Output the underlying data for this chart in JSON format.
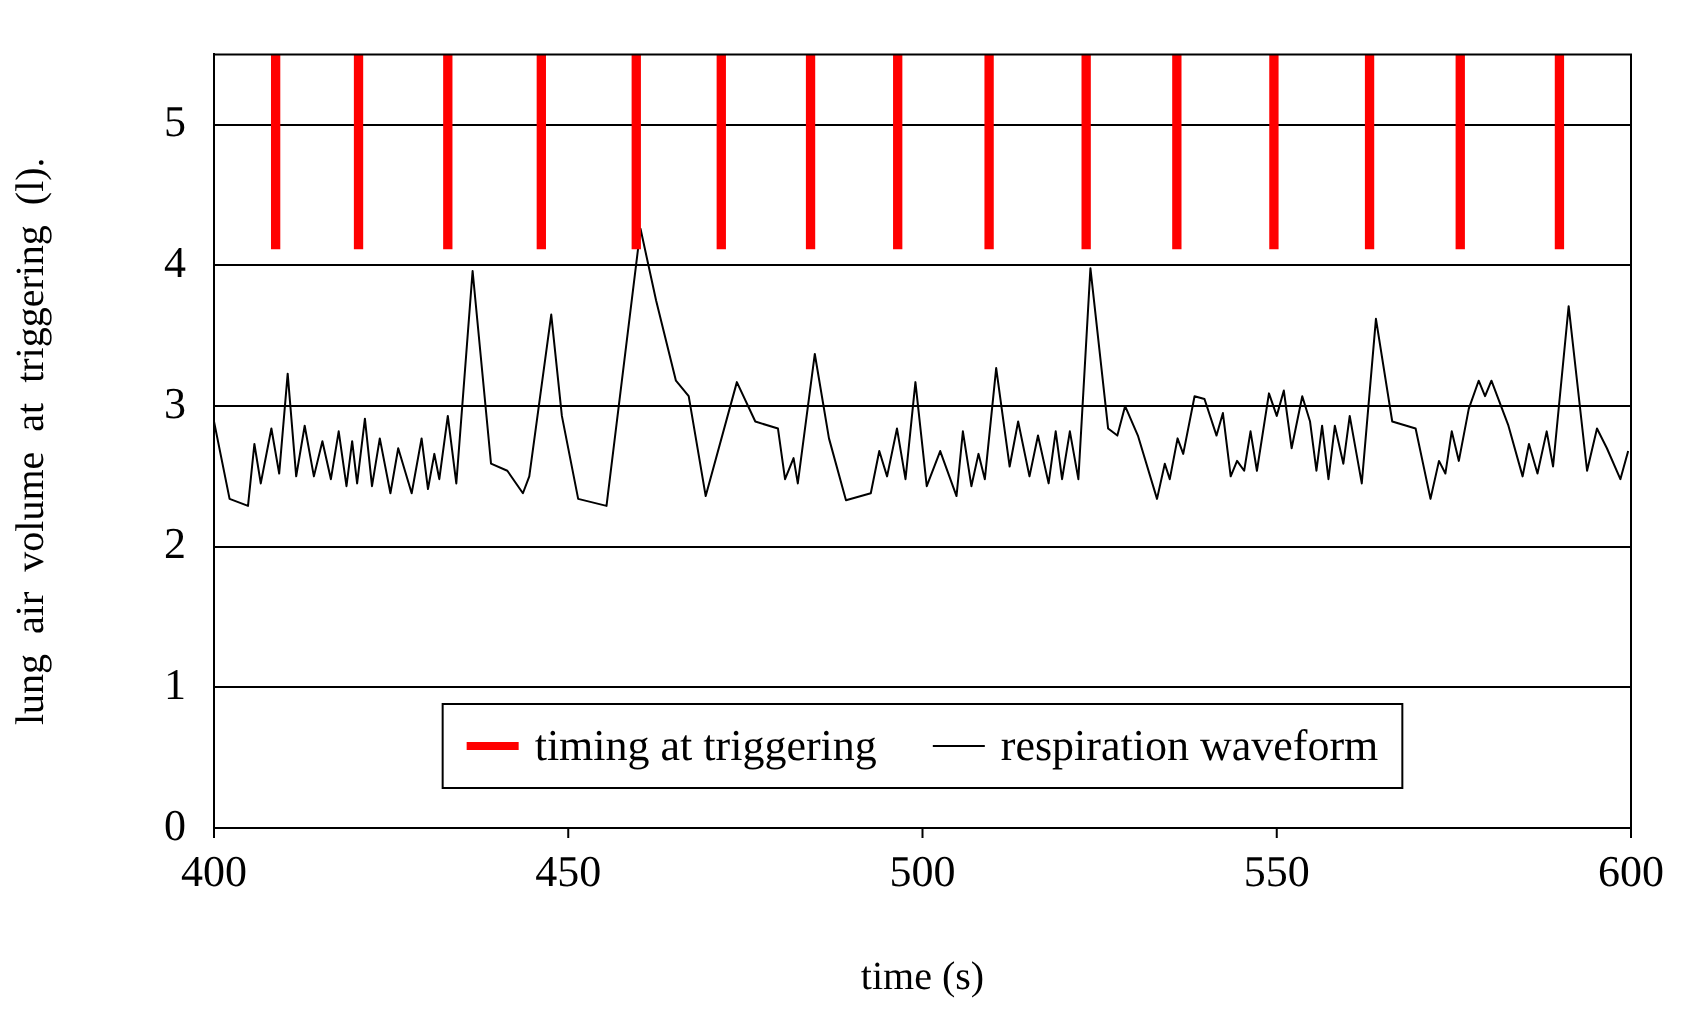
{
  "chart_data": {
    "type": "line",
    "xlabel": "time (s)",
    "ylabel": "lung  air  volume  at  triggering  (l).",
    "xlim": [
      400,
      600
    ],
    "xticks": [
      400,
      450,
      500,
      550,
      600
    ],
    "ylim": [
      0,
      5.5
    ],
    "yticks": [
      0,
      1,
      2,
      3,
      4,
      5
    ],
    "grid": "y",
    "legend": "bottom",
    "marker": "none",
    "series": [
      {
        "name": "timing at triggering",
        "type": "bar",
        "color": "#ff0000",
        "x": [
          408.7,
          420.4,
          433.0,
          446.2,
          459.6,
          471.6,
          484.2,
          496.5,
          509.4,
          523.1,
          535.9,
          549.6,
          563.1,
          575.9,
          589.9
        ],
        "base": [
          4.12,
          4.12,
          4.12,
          4.12,
          4.12,
          4.12,
          4.12,
          4.12,
          4.12,
          4.12,
          4.12,
          4.12,
          4.12,
          4.12,
          4.12
        ],
        "values": [
          1.38,
          1.38,
          1.38,
          1.38,
          1.38,
          1.38,
          1.38,
          1.38,
          1.38,
          1.38,
          1.38,
          1.38,
          1.38,
          1.38,
          1.38
        ]
      },
      {
        "name": "respiration waveform",
        "color": "#000000",
        "x": [
          400,
          402.2,
          404.8,
          405.7,
          406.6,
          408.1,
          409.2,
          410.4,
          411.6,
          412.8,
          414.1,
          415.3,
          416.5,
          417.6,
          418.7,
          419.5,
          420.2,
          421.3,
          422.3,
          423.4,
          424.9,
          426.0,
          427.9,
          429.3,
          430.2,
          431.1,
          431.8,
          433.0,
          434.2,
          436.5,
          439.1,
          441.4,
          443.6,
          444.5,
          447.6,
          449.1,
          451.4,
          455.4,
          460.2,
          462.4,
          465.2,
          467.0,
          469.4,
          473.8,
          476.4,
          479.6,
          480.6,
          481.8,
          482.4,
          484.8,
          486.8,
          489.2,
          492.7,
          493.9,
          495.0,
          496.4,
          497.6,
          499.0,
          500.6,
          502.5,
          504.8,
          505.7,
          506.9,
          507.9,
          508.8,
          510.4,
          512.3,
          513.5,
          515.1,
          516.3,
          517.8,
          518.8,
          519.7,
          520.8,
          522.0,
          523.7,
          526.2,
          527.5,
          528.6,
          530.4,
          533.1,
          534.2,
          534.9,
          536.0,
          536.8,
          538.4,
          539.8,
          541.5,
          542.4,
          543.5,
          544.4,
          545.4,
          546.3,
          547.2,
          548.9,
          550.0,
          551.0,
          552.1,
          553.6,
          554.7,
          555.6,
          556.4,
          557.3,
          558.2,
          559.4,
          560.3,
          562.0,
          564.0,
          566.3,
          569.6,
          571.7,
          572.9,
          573.8,
          574.7,
          575.7,
          577.1,
          578.5,
          579.4,
          580.3,
          582.7,
          584.7,
          585.6,
          586.8,
          588.1,
          589.0,
          591.2,
          593.8,
          595.2,
          596.6,
          598.5,
          599.6
        ],
        "values": [
          2.89,
          2.34,
          2.29,
          2.73,
          2.45,
          2.84,
          2.52,
          3.23,
          2.5,
          2.86,
          2.5,
          2.75,
          2.48,
          2.82,
          2.43,
          2.75,
          2.45,
          2.91,
          2.43,
          2.77,
          2.38,
          2.7,
          2.38,
          2.77,
          2.41,
          2.66,
          2.48,
          2.93,
          2.45,
          3.96,
          2.59,
          2.54,
          2.38,
          2.5,
          3.65,
          2.93,
          2.34,
          2.29,
          4.26,
          3.75,
          3.18,
          3.07,
          2.36,
          3.17,
          2.89,
          2.84,
          2.48,
          2.63,
          2.45,
          3.37,
          2.77,
          2.33,
          2.38,
          2.68,
          2.5,
          2.84,
          2.48,
          3.17,
          2.43,
          2.68,
          2.36,
          2.82,
          2.43,
          2.66,
          2.48,
          3.27,
          2.57,
          2.89,
          2.5,
          2.79,
          2.45,
          2.82,
          2.48,
          2.82,
          2.48,
          3.98,
          2.84,
          2.79,
          3.0,
          2.79,
          2.34,
          2.59,
          2.48,
          2.77,
          2.66,
          3.07,
          3.05,
          2.79,
          2.95,
          2.5,
          2.61,
          2.54,
          2.82,
          2.54,
          3.09,
          2.93,
          3.11,
          2.7,
          3.07,
          2.89,
          2.54,
          2.86,
          2.48,
          2.86,
          2.59,
          2.93,
          2.45,
          3.62,
          2.89,
          2.84,
          2.34,
          2.61,
          2.52,
          2.82,
          2.61,
          2.98,
          3.18,
          3.07,
          3.18,
          2.86,
          2.5,
          2.73,
          2.52,
          2.82,
          2.57,
          3.71,
          2.54,
          2.84,
          2.7,
          2.48,
          2.68
        ]
      }
    ]
  }
}
